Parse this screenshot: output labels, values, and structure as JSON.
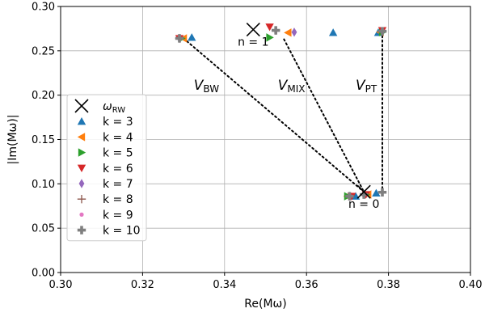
{
  "chart_data": {
    "type": "scatter",
    "xlabel": "Re(Mω)",
    "ylabel": "|Im(Mω)|",
    "xlim": [
      0.3,
      0.4
    ],
    "ylim": [
      0.0,
      0.3
    ],
    "xticks": [
      0.3,
      0.32,
      0.34,
      0.36,
      0.38,
      0.4
    ],
    "xtick_labels": [
      "0.30",
      "0.32",
      "0.34",
      "0.36",
      "0.38",
      "0.40"
    ],
    "yticks": [
      0.0,
      0.05,
      0.1,
      0.15,
      0.2,
      0.25,
      0.3
    ],
    "ytick_labels": [
      "0.00",
      "0.05",
      "0.10",
      "0.15",
      "0.20",
      "0.25",
      "0.30"
    ],
    "grid": true,
    "legend_position": "lower-left",
    "rw_label_main": "ω",
    "rw_label_sub": "RW",
    "rw": [
      {
        "x": 0.347,
        "y": 0.274,
        "label": "n = 1"
      },
      {
        "x": 0.374,
        "y": 0.091,
        "label": "n = 0"
      }
    ],
    "series": [
      {
        "name": "k = 3",
        "marker": "triangle-up",
        "color": "#1f77b4",
        "points": [
          [
            0.332,
            0.265
          ],
          [
            0.3665,
            0.2705
          ],
          [
            0.3775,
            0.2705
          ],
          [
            0.372,
            0.086
          ],
          [
            0.377,
            0.0895
          ]
        ]
      },
      {
        "name": "k = 4",
        "marker": "triangle-left",
        "color": "#ff7f0e",
        "points": [
          [
            0.33,
            0.264
          ],
          [
            0.3555,
            0.2705
          ],
          [
            0.378,
            0.271
          ],
          [
            0.37,
            0.086
          ],
          [
            0.375,
            0.088
          ]
        ]
      },
      {
        "name": "k = 5",
        "marker": "triangle-right",
        "color": "#2ca02c",
        "points": [
          [
            0.3295,
            0.264
          ],
          [
            0.351,
            0.265
          ],
          [
            0.3785,
            0.271
          ],
          [
            0.37,
            0.086
          ],
          [
            0.3745,
            0.088
          ]
        ]
      },
      {
        "name": "k = 6",
        "marker": "triangle-down",
        "color": "#d62728",
        "points": [
          [
            0.329,
            0.264
          ],
          [
            0.351,
            0.277
          ],
          [
            0.3785,
            0.273
          ],
          [
            0.371,
            0.086
          ],
          [
            0.3745,
            0.088
          ]
        ]
      },
      {
        "name": "k = 7",
        "marker": "diamond",
        "color": "#9467bd",
        "points": [
          [
            0.329,
            0.264
          ],
          [
            0.357,
            0.271
          ],
          [
            0.3785,
            0.272
          ],
          [
            0.3705,
            0.086
          ],
          [
            0.374,
            0.088
          ]
        ]
      },
      {
        "name": "k = 8",
        "marker": "plus",
        "color": "#8c564b",
        "points": [
          [
            0.329,
            0.264
          ],
          [
            0.3525,
            0.273
          ],
          [
            0.3785,
            0.272
          ],
          [
            0.3705,
            0.086
          ],
          [
            0.374,
            0.088
          ]
        ]
      },
      {
        "name": "k = 9",
        "marker": "dot",
        "color": "#e377c2",
        "points": [
          [
            0.329,
            0.264
          ],
          [
            0.3525,
            0.273
          ],
          [
            0.3785,
            0.272
          ],
          [
            0.3705,
            0.086
          ],
          [
            0.374,
            0.088
          ]
        ]
      },
      {
        "name": "k = 10",
        "marker": "plus-thick",
        "color": "#7f7f7f",
        "points": [
          [
            0.329,
            0.264
          ],
          [
            0.3525,
            0.273
          ],
          [
            0.3785,
            0.272
          ],
          [
            0.3705,
            0.086
          ],
          [
            0.374,
            0.088
          ],
          [
            0.3785,
            0.0905
          ]
        ]
      }
    ],
    "connectors": [
      {
        "name": "V_BW",
        "from": [
          0.33,
          0.264
        ],
        "to": [
          0.374,
          0.091
        ]
      },
      {
        "name": "V_MIX",
        "from": [
          0.3545,
          0.263
        ],
        "to": [
          0.374,
          0.091
        ]
      },
      {
        "name": "V_PT",
        "from": [
          0.3785,
          0.272
        ],
        "to": [
          0.3785,
          0.0905
        ]
      }
    ],
    "annotations": [
      {
        "main": "V",
        "sub": "BW",
        "x": 0.3325,
        "y": 0.206
      },
      {
        "main": "V",
        "sub": "MIX",
        "x": 0.353,
        "y": 0.206
      },
      {
        "main": "V",
        "sub": "PT",
        "x": 0.372,
        "y": 0.206
      }
    ]
  }
}
